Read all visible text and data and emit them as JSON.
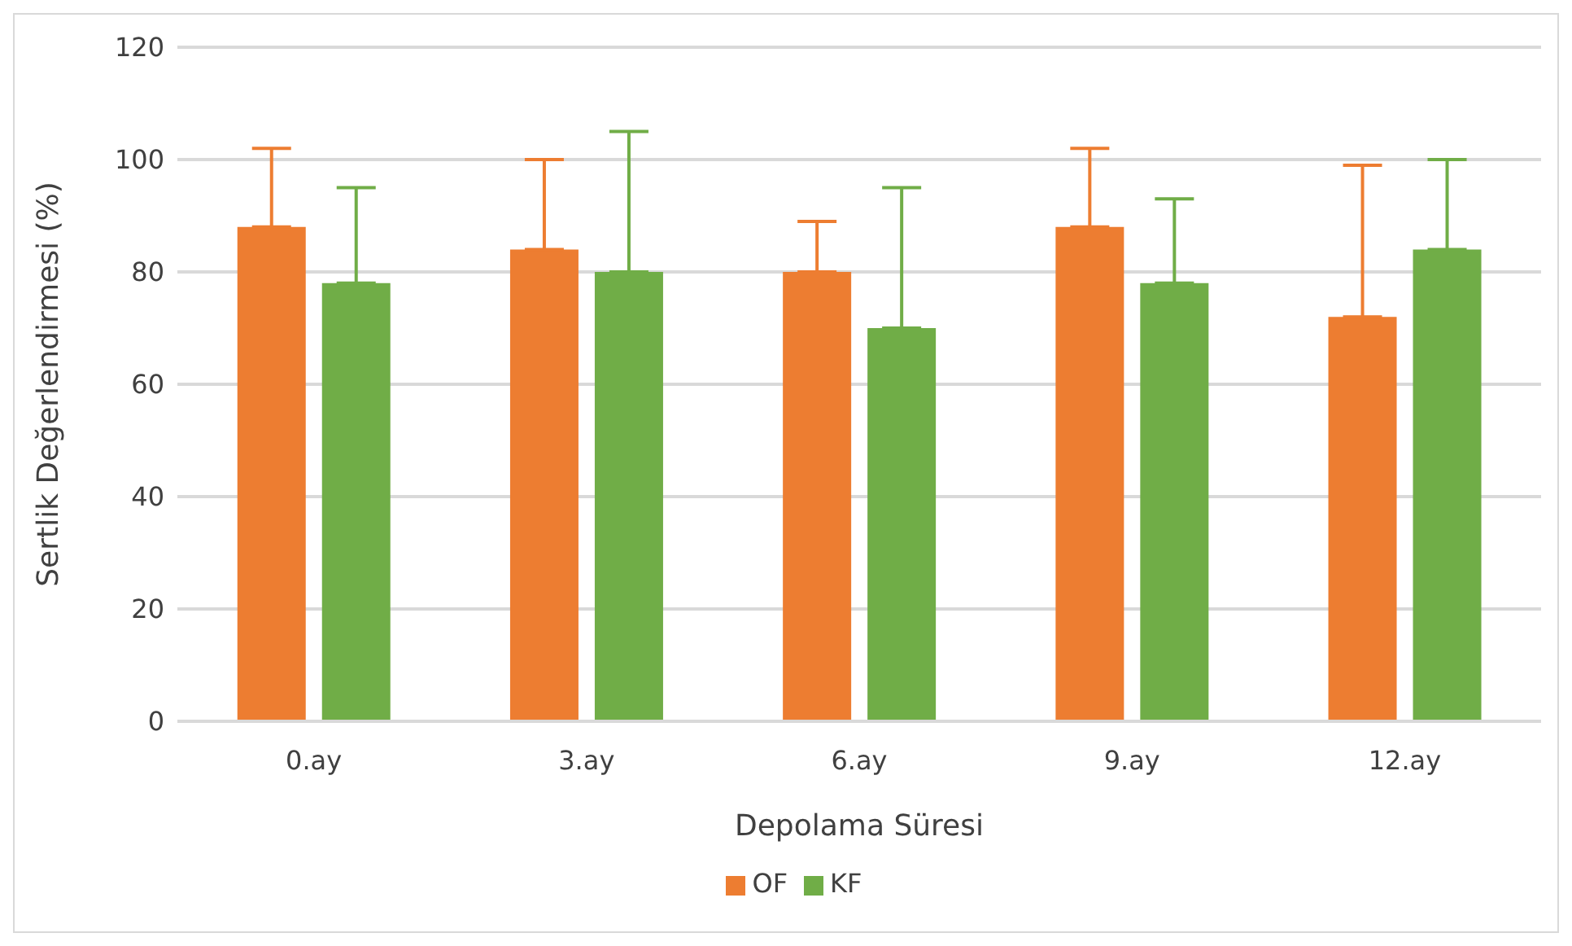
{
  "chart_data": {
    "type": "bar",
    "xlabel": "Depolama Süresi",
    "ylabel": "Sertlik Değerlendirmesi (%)",
    "categories": [
      "0.ay",
      "3.ay",
      "6.ay",
      "9.ay",
      "12.ay"
    ],
    "series": [
      {
        "name": "OF",
        "color": "#ed7d31",
        "values": [
          88,
          84,
          80,
          88,
          72
        ],
        "errors": [
          [
            88,
            102
          ],
          [
            84,
            100
          ],
          [
            80,
            89
          ],
          [
            88,
            102
          ],
          [
            72,
            99
          ]
        ]
      },
      {
        "name": "KF",
        "color": "#70ad47",
        "values": [
          78,
          80,
          70,
          78,
          84
        ],
        "errors": [
          [
            78,
            95
          ],
          [
            80,
            105
          ],
          [
            70,
            95
          ],
          [
            78,
            93
          ],
          [
            84,
            100
          ]
        ]
      }
    ],
    "ylim": [
      0,
      120
    ],
    "yticks": [
      0,
      20,
      40,
      60,
      80,
      100,
      120
    ],
    "grid": "y",
    "legend": "bottom"
  }
}
